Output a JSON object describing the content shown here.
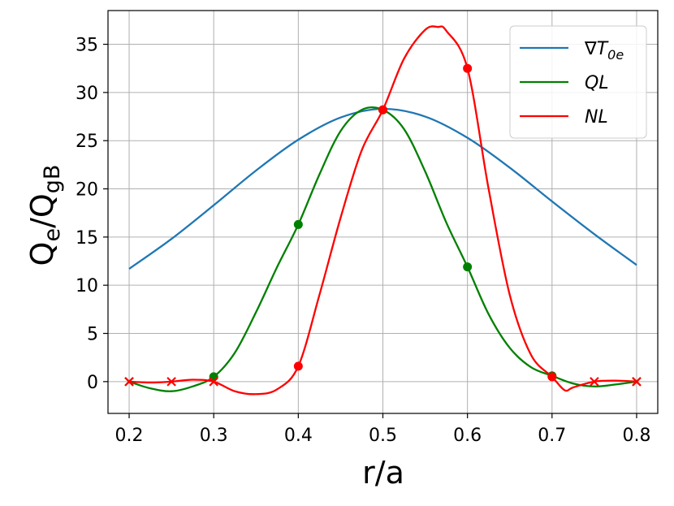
{
  "chart_data": {
    "type": "line",
    "xlabel": "r/a",
    "ylabel": {
      "base1": "Q",
      "sub1": "e",
      "sep": "/",
      "base2": "Q",
      "sub2": "gB"
    },
    "xlim": [
      0.175,
      0.825
    ],
    "ylim": [
      -3.3,
      38.5
    ],
    "xticks": [
      0.2,
      0.3,
      0.4,
      0.5,
      0.6,
      0.7,
      0.8
    ],
    "xtick_labels": [
      "0.2",
      "0.3",
      "0.4",
      "0.5",
      "0.6",
      "0.7",
      "0.8"
    ],
    "yticks": [
      0,
      5,
      10,
      15,
      20,
      25,
      30,
      35
    ],
    "ytick_labels": [
      "0",
      "5",
      "10",
      "15",
      "20",
      "25",
      "30",
      "35"
    ],
    "grid": true,
    "legend_position": "top-right",
    "series": [
      {
        "name": {
          "base": "∇T",
          "sub": "0e"
        },
        "color": "#1f77b4",
        "x": [
          0.2,
          0.25,
          0.3,
          0.35,
          0.4,
          0.45,
          0.5,
          0.55,
          0.6,
          0.65,
          0.7,
          0.75,
          0.8
        ],
        "y": [
          11.7,
          14.8,
          18.3,
          21.9,
          25.1,
          27.4,
          28.3,
          27.5,
          25.3,
          22.2,
          18.7,
          15.3,
          12.1
        ]
      },
      {
        "name": "QL",
        "color": "#008000",
        "x": [
          0.2,
          0.225,
          0.25,
          0.275,
          0.3,
          0.325,
          0.35,
          0.375,
          0.4,
          0.425,
          0.45,
          0.475,
          0.5,
          0.525,
          0.55,
          0.575,
          0.6,
          0.625,
          0.65,
          0.675,
          0.7,
          0.725,
          0.75,
          0.775,
          0.8
        ],
        "y": [
          0.0,
          -0.7,
          -1.0,
          -0.5,
          0.5,
          3.0,
          7.2,
          11.9,
          16.3,
          21.5,
          26.0,
          28.2,
          28.2,
          26.2,
          21.8,
          16.5,
          11.9,
          7.0,
          3.5,
          1.5,
          0.6,
          -0.2,
          -0.5,
          -0.3,
          0.0
        ],
        "markers": {
          "x": [
            0.2,
            0.3,
            0.4,
            0.5,
            0.6,
            0.7,
            0.8
          ],
          "y": [
            0,
            0.5,
            16.3,
            28.2,
            11.9,
            0.6,
            0
          ],
          "symbols": [
            "x",
            "o",
            "o",
            "o",
            "o",
            "o",
            "x"
          ]
        }
      },
      {
        "name": "NL",
        "color": "#ff0000",
        "x": [
          0.2,
          0.225,
          0.25,
          0.275,
          0.3,
          0.325,
          0.35,
          0.375,
          0.4,
          0.425,
          0.45,
          0.475,
          0.5,
          0.525,
          0.55,
          0.565,
          0.575,
          0.6,
          0.625,
          0.65,
          0.675,
          0.7,
          0.715,
          0.725,
          0.75,
          0.775,
          0.8
        ],
        "y": [
          0.0,
          -0.1,
          0.0,
          0.2,
          0.0,
          -1.0,
          -1.3,
          -0.8,
          1.6,
          9.0,
          17.0,
          24.0,
          28.2,
          33.5,
          36.5,
          36.8,
          36.4,
          32.5,
          20.0,
          9.0,
          2.8,
          0.5,
          -0.9,
          -0.6,
          0.0,
          0.1,
          0.0
        ],
        "markers": {
          "x": [
            0.2,
            0.25,
            0.3,
            0.4,
            0.5,
            0.6,
            0.7,
            0.75,
            0.8
          ],
          "y": [
            0,
            0,
            0,
            1.6,
            28.2,
            32.5,
            0.5,
            0,
            0
          ],
          "symbols": [
            "x",
            "x",
            "x",
            "o",
            "o",
            "o",
            "o",
            "x",
            "x"
          ]
        }
      }
    ]
  }
}
